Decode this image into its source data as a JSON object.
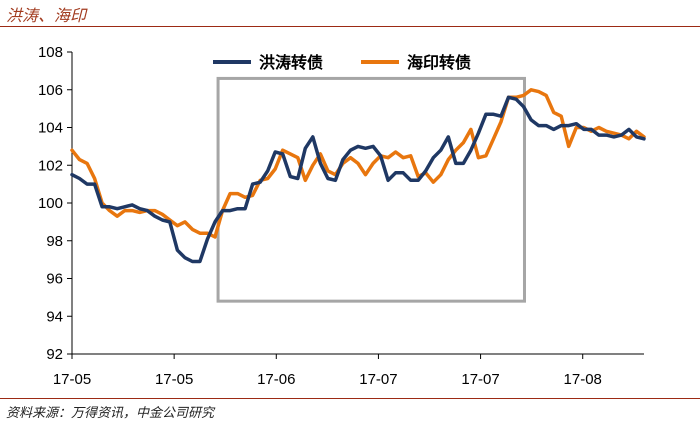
{
  "header": {
    "title": "洪涛、海印"
  },
  "footer": {
    "source": "资料来源：万得资讯，中金公司研究"
  },
  "chart_data": {
    "type": "line",
    "title": "洪涛、海印",
    "xlabel": "",
    "ylabel": "",
    "ylim": [
      92,
      108
    ],
    "yticks": [
      92,
      94,
      96,
      98,
      100,
      102,
      104,
      106,
      108
    ],
    "xlim": [
      0,
      56
    ],
    "xticks": [
      {
        "x": 0,
        "label": "17-05"
      },
      {
        "x": 10,
        "label": "17-05"
      },
      {
        "x": 20,
        "label": "17-06"
      },
      {
        "x": 30,
        "label": "17-07"
      },
      {
        "x": 40,
        "label": "17-07"
      },
      {
        "x": 50,
        "label": "17-08"
      }
    ],
    "grid": false,
    "legend": "top",
    "highlight_box": {
      "x_from": 14.3,
      "x_to": 44.3,
      "y_from": 94.8,
      "y_to": 106.6,
      "color": "#a6a6a6"
    },
    "series": [
      {
        "name": "洪涛转债",
        "color": "#1f3864",
        "values": [
          101.5,
          101.3,
          101.0,
          101.0,
          99.8,
          99.8,
          99.7,
          99.8,
          99.9,
          99.7,
          99.6,
          99.3,
          99.1,
          99.0,
          97.5,
          97.1,
          96.9,
          96.9,
          98.1,
          99.0,
          99.6,
          99.6,
          99.7,
          99.7,
          101.0,
          101.1,
          101.7,
          102.7,
          102.6,
          101.4,
          101.3,
          102.9,
          103.5,
          102.1,
          101.3,
          101.2,
          102.3,
          102.8,
          103.0,
          102.9,
          103.0,
          102.5,
          101.2,
          101.6,
          101.6,
          101.2,
          101.2,
          101.7,
          102.4,
          102.8,
          103.5,
          102.1,
          102.1,
          102.8,
          103.7,
          104.7,
          104.7,
          104.6,
          105.6,
          105.5,
          105.1,
          104.4,
          104.1,
          104.1,
          103.9,
          104.1,
          104.1,
          104.2,
          103.9,
          103.9,
          103.6,
          103.6,
          103.5,
          103.6,
          103.9,
          103.5,
          103.4
        ]
      },
      {
        "name": "海印转债",
        "color": "#e8760e",
        "values": [
          102.8,
          102.3,
          102.1,
          101.3,
          100.0,
          99.6,
          99.3,
          99.6,
          99.6,
          99.5,
          99.6,
          99.6,
          99.4,
          99.1,
          98.8,
          99.0,
          98.6,
          98.4,
          98.4,
          98.2,
          99.6,
          100.5,
          100.5,
          100.3,
          100.4,
          101.2,
          101.3,
          101.8,
          102.8,
          102.6,
          102.4,
          101.2,
          102.0,
          102.6,
          101.7,
          101.5,
          102.1,
          102.4,
          102.1,
          101.5,
          102.1,
          102.5,
          102.4,
          102.7,
          102.4,
          102.5,
          101.4,
          101.6,
          101.1,
          101.5,
          102.3,
          102.8,
          103.2,
          103.9,
          102.4,
          102.5,
          103.4,
          104.3,
          105.6,
          105.6,
          105.7,
          106.0,
          105.9,
          105.7,
          104.8,
          104.6,
          103.0,
          104.0,
          104.0,
          103.8,
          104.0,
          103.8,
          103.7,
          103.6,
          103.4,
          103.8,
          103.5
        ]
      }
    ]
  }
}
